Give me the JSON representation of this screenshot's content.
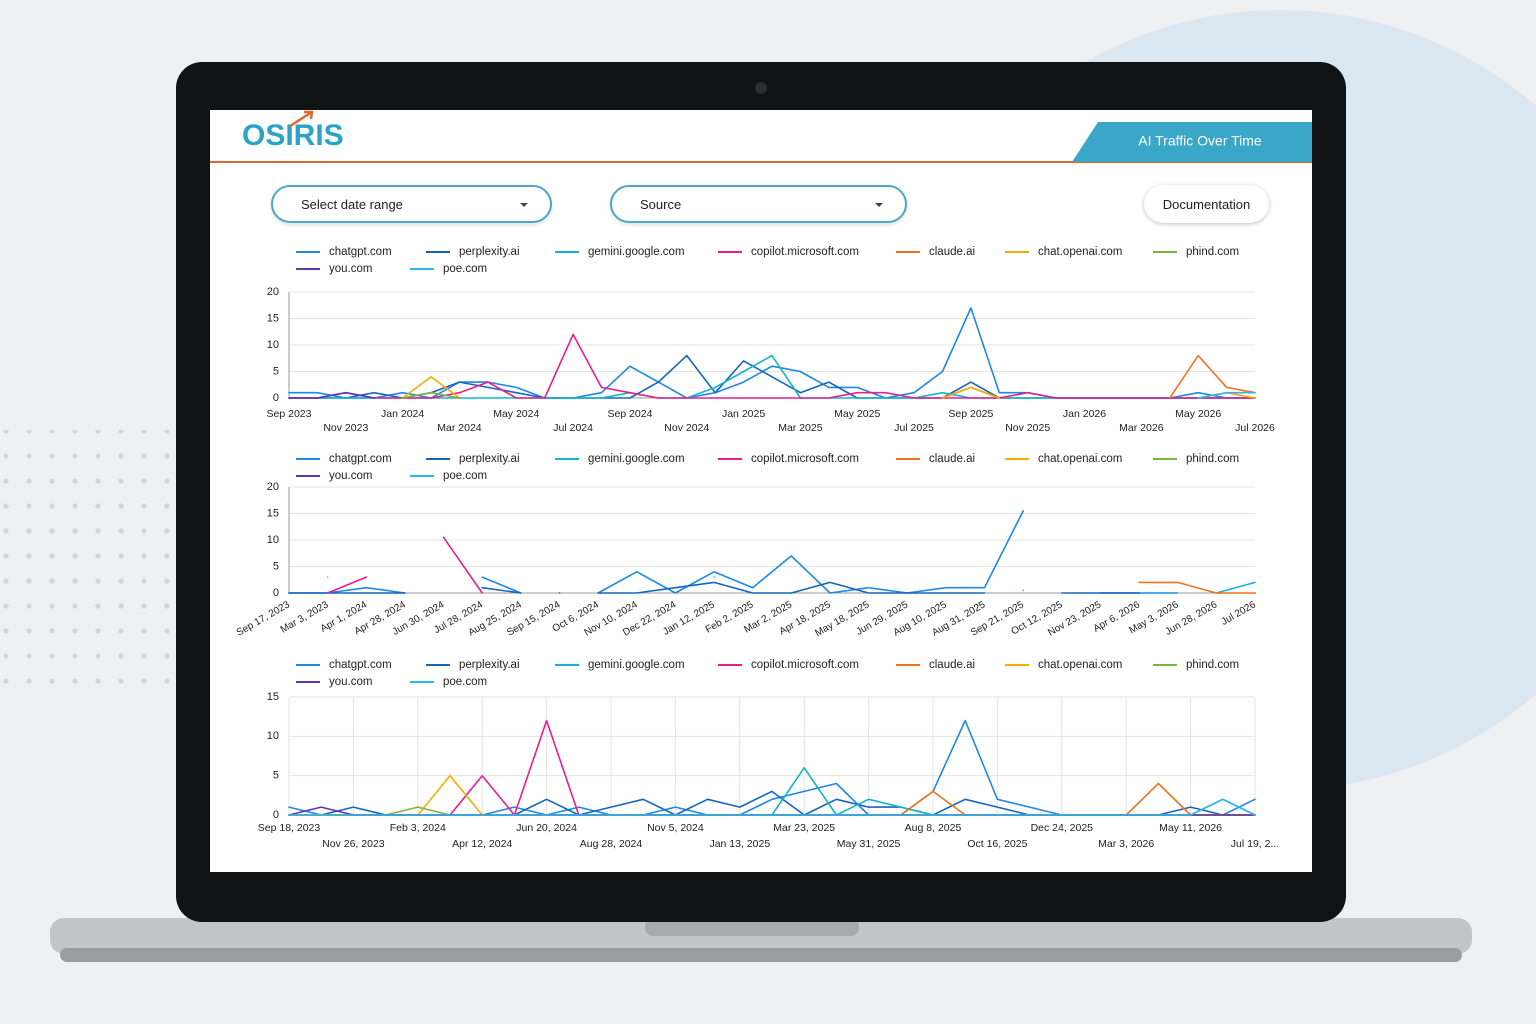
{
  "header": {
    "logo": "OSIRIS",
    "title": "AI Traffic Over Time"
  },
  "controls": {
    "date_range": "Select date range",
    "source": "Source",
    "documentation": "Documentation"
  },
  "chart_data": [
    {
      "type": "line",
      "ylim": [
        0,
        20
      ],
      "yticks": [
        0,
        5,
        10,
        15,
        20
      ],
      "grid": true,
      "categories": [
        "Sep 2023",
        null,
        "Nov 2023",
        null,
        "Jan 2024",
        null,
        "Mar 2024",
        null,
        "May 2024",
        null,
        "Jul 2024",
        null,
        "Sep 2024",
        null,
        "Nov 2024",
        null,
        "Jan 2025",
        null,
        "Mar 2025",
        null,
        "May 2025",
        null,
        "Jul 2025",
        null,
        "Sep 2025",
        null,
        "Nov 2025",
        null,
        "Jan 2026",
        null,
        "Mar 2026",
        null,
        "May 2026",
        null,
        "Jul 2026"
      ],
      "series": [
        {
          "name": "chatgpt.com",
          "color": "#1e88e5",
          "values": [
            1,
            1,
            0,
            0,
            1,
            0,
            3,
            3,
            2,
            0,
            0,
            1,
            6,
            3,
            0,
            1,
            3,
            6,
            5,
            2,
            2,
            0,
            1,
            5,
            17,
            1,
            1,
            0,
            0,
            0,
            0,
            0,
            1,
            0,
            0
          ]
        },
        {
          "name": "perplexity.ai",
          "color": "#1565c0",
          "values": [
            0,
            0,
            0,
            1,
            0,
            1,
            3,
            2,
            1,
            0,
            0,
            0,
            0,
            3,
            8,
            1,
            7,
            4,
            1,
            3,
            0,
            0,
            0,
            0,
            3,
            0,
            0,
            0,
            0,
            0,
            0,
            0,
            0,
            0,
            0
          ]
        },
        {
          "name": "gemini.google.com",
          "color": "#12b5cb",
          "values": [
            0,
            0,
            0,
            0,
            0,
            0,
            0,
            0,
            0,
            0,
            0,
            0,
            1,
            0,
            0,
            2,
            5,
            8,
            0,
            0,
            0,
            0,
            0,
            1,
            0,
            0,
            0,
            0,
            0,
            0,
            0,
            0,
            0,
            0,
            0
          ]
        },
        {
          "name": "copilot.microsoft.com",
          "color": "#e91e8c",
          "values": [
            0,
            0,
            1,
            0,
            0,
            0,
            1,
            3,
            0,
            0,
            12,
            2,
            1,
            0,
            0,
            0,
            0,
            0,
            0,
            0,
            1,
            1,
            0,
            0,
            0,
            0,
            1,
            0,
            0,
            0,
            0,
            0,
            0,
            0,
            0
          ]
        },
        {
          "name": "claude.ai",
          "color": "#f2711c",
          "values": [
            null,
            null,
            null,
            null,
            null,
            null,
            null,
            null,
            null,
            null,
            null,
            null,
            null,
            null,
            null,
            null,
            null,
            null,
            null,
            null,
            null,
            null,
            null,
            0,
            2,
            0,
            null,
            null,
            null,
            null,
            null,
            0,
            8,
            2,
            1
          ]
        },
        {
          "name": "chat.openai.com",
          "color": "#f9ab00",
          "values": [
            null,
            null,
            null,
            null,
            0,
            4,
            0,
            null,
            null,
            null,
            null,
            null,
            null,
            null,
            null,
            null,
            null,
            null,
            null,
            null,
            null,
            null,
            null,
            0,
            2,
            0,
            null,
            null,
            null,
            null,
            null,
            null,
            0,
            1,
            0
          ]
        },
        {
          "name": "phind.com",
          "color": "#7cb342",
          "values": [
            null,
            null,
            null,
            null,
            0,
            1,
            0,
            null,
            null,
            null,
            null,
            null,
            null,
            null,
            null,
            null,
            null,
            null,
            null,
            null,
            null,
            null,
            null,
            null,
            null,
            null,
            null,
            null,
            null,
            null,
            null,
            null,
            null,
            null,
            null
          ]
        },
        {
          "name": "you.com",
          "color": "#5e35b1",
          "values": [
            0,
            0,
            1,
            0,
            null,
            null,
            null,
            null,
            null,
            null,
            null,
            null,
            null,
            null,
            null,
            null,
            null,
            null,
            null,
            null,
            null,
            null,
            null,
            null,
            null,
            null,
            null,
            null,
            null,
            null,
            null,
            null,
            null,
            null,
            null
          ]
        },
        {
          "name": "poe.com",
          "color": "#29b6f6",
          "values": [
            null,
            null,
            null,
            null,
            null,
            null,
            null,
            null,
            null,
            null,
            null,
            null,
            null,
            null,
            null,
            null,
            null,
            null,
            null,
            null,
            null,
            null,
            null,
            null,
            null,
            null,
            null,
            null,
            null,
            null,
            null,
            null,
            0,
            1,
            1
          ]
        }
      ]
    },
    {
      "type": "line",
      "ylim": [
        0,
        20
      ],
      "yticks": [
        0,
        5,
        10,
        15,
        20
      ],
      "grid": true,
      "categories": [
        "Sep 17, 2023",
        "Mar 3, 2023",
        "Apr 1, 2024",
        "Apr 28, 2024",
        "Jun 30, 2024",
        "Jul 28, 2024",
        "Aug 25, 2024",
        "Sep 15, 2024",
        "Oct 6, 2024",
        "Nov 10, 2024",
        "Dec 22, 2024",
        "Jan 12, 2025",
        "Feb 2, 2025",
        "Mar 2, 2025",
        "Apr 18, 2025",
        "May 18, 2025",
        "Jun 29, 2025",
        "Aug 10, 2025",
        "Aug 31, 2025",
        "Sep 21, 2025",
        "Oct 12, 2025",
        "Nov 23, 2025",
        "Apr 6, 2026",
        "May 3, 2026",
        "Jun 28, 2026",
        "Jul 2026"
      ],
      "series": [
        {
          "name": "chatgpt.com",
          "color": "#1e88e5",
          "values": [
            0,
            0,
            1,
            0,
            null,
            3,
            0,
            null,
            0,
            4,
            0,
            4,
            1,
            7,
            0,
            1,
            0,
            1,
            1,
            15.5,
            null,
            0,
            0,
            0,
            null,
            null
          ]
        },
        {
          "name": "perplexity.ai",
          "color": "#1565c0",
          "values": [
            0,
            0,
            0,
            0,
            null,
            1,
            0,
            null,
            0,
            0,
            1,
            2,
            0,
            0,
            2,
            0,
            0,
            0,
            0,
            null,
            0,
            0,
            0,
            null,
            null,
            0
          ]
        },
        {
          "name": "gemini.google.com",
          "color": "#12b5cb",
          "values": [
            null,
            null,
            null,
            null,
            null,
            null,
            null,
            0,
            null,
            null,
            null,
            4,
            null,
            null,
            null,
            1,
            null,
            1,
            null,
            null,
            null,
            null,
            null,
            null,
            0,
            2
          ]
        },
        {
          "name": "copilot.microsoft.com",
          "color": "#e91e8c",
          "values": [
            null,
            0,
            3,
            null,
            10.5,
            0,
            null,
            0,
            null,
            null,
            null,
            null,
            null,
            null,
            null,
            null,
            0,
            null,
            null,
            null,
            null,
            null,
            null,
            null,
            null,
            null
          ]
        },
        {
          "name": "claude.ai",
          "color": "#f2711c",
          "values": [
            null,
            null,
            null,
            null,
            null,
            null,
            null,
            null,
            null,
            null,
            null,
            null,
            null,
            null,
            null,
            null,
            null,
            null,
            null,
            0.5,
            null,
            null,
            2,
            2,
            0,
            0
          ]
        },
        {
          "name": "chat.openai.com",
          "color": "#f9ab00",
          "values": [
            null,
            3,
            null,
            null,
            null,
            null,
            null,
            null,
            null,
            null,
            null,
            null,
            null,
            null,
            null,
            null,
            null,
            null,
            null,
            null,
            null,
            null,
            null,
            null,
            null,
            null
          ]
        },
        {
          "name": "phind.com",
          "color": "#7cb342",
          "values": [
            0,
            null,
            null,
            null,
            null,
            null,
            null,
            null,
            null,
            null,
            null,
            null,
            null,
            null,
            null,
            null,
            null,
            null,
            null,
            null,
            null,
            null,
            null,
            null,
            null,
            null
          ]
        },
        {
          "name": "you.com",
          "color": "#5e35b1",
          "values": [
            0,
            null,
            null,
            null,
            null,
            null,
            null,
            null,
            null,
            null,
            null,
            null,
            null,
            null,
            null,
            null,
            null,
            null,
            null,
            null,
            null,
            null,
            null,
            null,
            null,
            null
          ]
        },
        {
          "name": "poe.com",
          "color": "#29b6f6",
          "values": [
            null,
            null,
            null,
            null,
            null,
            null,
            null,
            null,
            null,
            null,
            null,
            3,
            null,
            null,
            null,
            null,
            null,
            null,
            null,
            null,
            null,
            null,
            null,
            null,
            null,
            null
          ]
        }
      ]
    },
    {
      "type": "line",
      "ylim": [
        0,
        15
      ],
      "yticks": [
        0,
        5,
        10,
        15
      ],
      "grid": true,
      "categories": [
        "Sep 18, 2023",
        null,
        "Nov 26, 2023",
        null,
        "Feb 3, 2024",
        null,
        "Apr 12, 2024",
        null,
        "Jun 20, 2024",
        null,
        "Aug 28, 2024",
        null,
        "Nov 5, 2024",
        null,
        "Jan 13, 2025",
        null,
        "Mar 23, 2025",
        null,
        "May 31, 2025",
        null,
        "Aug 8, 2025",
        null,
        "Oct 16, 2025",
        null,
        "Dec 24, 2025",
        null,
        "Mar 3, 2026",
        null,
        "May 11, 2026",
        null,
        "Jul 19, 2..."
      ],
      "series": [
        {
          "name": "chatgpt.com",
          "color": "#1e88e5",
          "values": [
            1,
            0,
            0,
            0,
            0,
            0,
            0,
            1,
            0,
            1,
            0,
            0,
            1,
            0,
            0,
            2,
            3,
            4,
            0,
            0,
            3,
            12,
            2,
            1,
            0,
            0,
            0,
            0,
            0,
            0,
            2
          ]
        },
        {
          "name": "perplexity.ai",
          "color": "#1565c0",
          "values": [
            0,
            0,
            1,
            0,
            0,
            0,
            0,
            0,
            2,
            0,
            1,
            2,
            0,
            2,
            1,
            3,
            0,
            2,
            1,
            1,
            0,
            2,
            1,
            0,
            0,
            0,
            0,
            0,
            1,
            0,
            0
          ]
        },
        {
          "name": "gemini.google.com",
          "color": "#12b5cb",
          "values": [
            0,
            0,
            0,
            0,
            0,
            0,
            0,
            0,
            0,
            0,
            0,
            0,
            0,
            0,
            0,
            0,
            6,
            0,
            2,
            1,
            0,
            0,
            0,
            0,
            0,
            0,
            0,
            0,
            0,
            2,
            0
          ]
        },
        {
          "name": "copilot.microsoft.com",
          "color": "#e91e8c",
          "values": [
            0,
            0,
            0,
            0,
            0,
            0,
            5,
            0,
            12,
            0,
            0,
            0,
            0,
            0,
            0,
            0,
            0,
            0,
            0,
            0,
            0,
            0,
            0,
            0,
            0,
            0,
            0,
            0,
            0,
            0,
            0
          ]
        },
        {
          "name": "claude.ai",
          "color": "#f2711c",
          "values": [
            0,
            0,
            0,
            0,
            0,
            0,
            0,
            0,
            0,
            0,
            0,
            0,
            0,
            0,
            0,
            0,
            0,
            0,
            0,
            0,
            3,
            0,
            0,
            0,
            0,
            0,
            0,
            4,
            0,
            0,
            0
          ]
        },
        {
          "name": "chat.openai.com",
          "color": "#f9ab00",
          "values": [
            0,
            0,
            0,
            0,
            0,
            5,
            0,
            0,
            0,
            0,
            0,
            0,
            0,
            0,
            0,
            0,
            0,
            0,
            0,
            0,
            0,
            0,
            0,
            0,
            0,
            0,
            0,
            0,
            0,
            0,
            0
          ]
        },
        {
          "name": "phind.com",
          "color": "#7cb342",
          "values": [
            0,
            0,
            0,
            0,
            1,
            0,
            0,
            0,
            0,
            0,
            0,
            0,
            0,
            0,
            0,
            0,
            0,
            0,
            0,
            0,
            0,
            0,
            0,
            0,
            0,
            0,
            0,
            0,
            0,
            0,
            0
          ]
        },
        {
          "name": "you.com",
          "color": "#5e35b1",
          "values": [
            0,
            1,
            0,
            0,
            0,
            0,
            0,
            0,
            0,
            0,
            0,
            0,
            0,
            0,
            0,
            0,
            0,
            0,
            0,
            0,
            0,
            0,
            0,
            0,
            0,
            0,
            0,
            0,
            0,
            0,
            0
          ]
        },
        {
          "name": "poe.com",
          "color": "#29b6f6",
          "values": [
            0,
            0,
            0,
            0,
            0,
            0,
            0,
            0,
            0,
            0,
            0,
            0,
            0,
            0,
            0,
            0,
            0,
            0,
            0,
            0,
            0,
            0,
            0,
            0,
            0,
            0,
            0,
            0,
            0,
            2,
            0
          ]
        }
      ]
    }
  ]
}
